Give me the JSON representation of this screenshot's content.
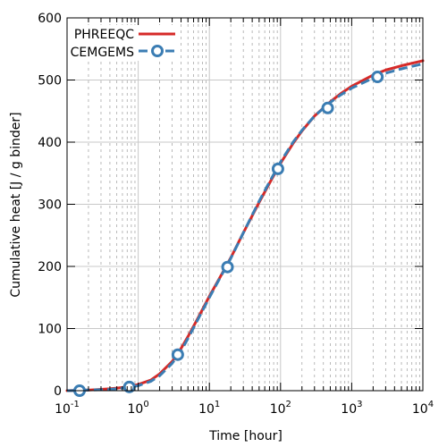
{
  "chart_data": {
    "type": "line",
    "xlabel": "Time [hour]",
    "ylabel": "Cumulative heat [J / g binder]",
    "xscale": "log",
    "xlim": [
      0.1,
      10000
    ],
    "ylim": [
      0,
      600
    ],
    "x_tick_labels": [
      {
        "base": "10",
        "exp": "-1",
        "value": 0.1
      },
      {
        "base": "10",
        "exp": "0",
        "value": 1
      },
      {
        "base": "10",
        "exp": "1",
        "value": 10
      },
      {
        "base": "10",
        "exp": "2",
        "value": 100
      },
      {
        "base": "10",
        "exp": "3",
        "value": 1000
      },
      {
        "base": "10",
        "exp": "4",
        "value": 10000
      }
    ],
    "y_ticks": [
      0,
      100,
      200,
      300,
      400,
      500,
      600
    ],
    "grid": true,
    "legend_position": "top-left",
    "series": [
      {
        "name": "PHREEQC",
        "style": "solid-line",
        "color": "#d62a28",
        "x": [
          0.1,
          0.2,
          0.4,
          0.7,
          1,
          1.5,
          2,
          3,
          4,
          5,
          7,
          10,
          15,
          20,
          30,
          50,
          70,
          100,
          150,
          200,
          300,
          500,
          700,
          1000,
          2000,
          3000,
          5000,
          10000
        ],
        "y": [
          0,
          1,
          3,
          6,
          10,
          17,
          27,
          47,
          68,
          87,
          118,
          152,
          188,
          214,
          254,
          303,
          334,
          366,
          398,
          418,
          442,
          465,
          478,
          490,
          508,
          516,
          523,
          531
        ]
      },
      {
        "name": "CEMGEMS",
        "style": "dashed-line-with-markers",
        "color": "#3b7db3",
        "x": [
          0.1,
          0.2,
          0.4,
          0.7,
          1,
          1.5,
          2,
          3,
          4,
          5,
          7,
          10,
          15,
          20,
          30,
          50,
          70,
          100,
          150,
          200,
          300,
          500,
          700,
          1000,
          2000,
          3000,
          5000,
          10000
        ],
        "y": [
          0,
          1,
          2,
          5,
          8,
          15,
          24,
          44,
          64,
          84,
          116,
          150,
          187,
          213,
          254,
          305,
          336,
          368,
          400,
          419,
          442,
          464,
          476,
          487,
          503,
          511,
          518,
          526
        ],
        "markers": {
          "x": [
            0.15,
            0.75,
            3.6,
            18,
            92,
            460,
            2300
          ],
          "y": [
            0,
            6,
            58,
            199,
            357,
            455,
            505
          ]
        }
      }
    ]
  }
}
